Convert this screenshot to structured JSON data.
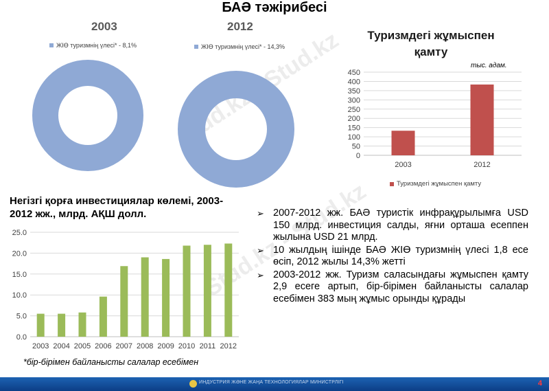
{
  "title": "БАӘ тәжірибесі",
  "donut_charts": [
    {
      "year": "2003",
      "legend": "ЖІӨ туризмнің үлесі* - 8,1%",
      "share_percent": 8.1,
      "color": "#8fa9d5"
    },
    {
      "year": "2012",
      "legend": "ЖІӨ туризмнің үлесі* - 14,3%",
      "share_percent": 14.3,
      "color": "#8fa9d5"
    }
  ],
  "employment_chart": {
    "title": "Туризмдегі жұмыспен қамту",
    "unit": "тыс. адам.",
    "legend": "Туризмдегі жұмыспен қамту",
    "color": "#c0504d"
  },
  "investment_chart": {
    "title": "Негізгі қорға инвестициялар көлемі, 2003-2012 жж., млрд. АҚШ долл.",
    "color": "#9bbb59"
  },
  "chart_data": [
    {
      "type": "bar",
      "title": "Туризмдегі жұмыспен қамту",
      "categories": [
        "2003",
        "2012"
      ],
      "series": [
        {
          "name": "Туризмдегі жұмыспен қамту",
          "values": [
            133,
            383
          ]
        }
      ],
      "ylim": [
        0,
        450
      ],
      "yticks": [
        "0",
        "50",
        "100",
        "150",
        "200",
        "250",
        "300",
        "350",
        "400",
        "450"
      ],
      "grid": true,
      "legend": "bottom"
    },
    {
      "type": "bar",
      "title": "Негізгі қорға инвестициялар көлемі, 2003-2012 жж., млрд. АҚШ долл.",
      "categories": [
        "2003",
        "2004",
        "2005",
        "2006",
        "2007",
        "2008",
        "2009",
        "2010",
        "2011",
        "2012"
      ],
      "values": [
        5.5,
        5.5,
        5.8,
        9.6,
        16.9,
        19.0,
        18.6,
        21.8,
        22.0,
        22.3
      ],
      "ylim": [
        0,
        25
      ],
      "yticks": [
        "0.0",
        "5.0",
        "10.0",
        "15.0",
        "20.0",
        "25.0"
      ],
      "grid": true
    }
  ],
  "bullets": [
    "2007-2012 жж. БАӘ туристік инфрақұрылымға USD 150 млрд. инвестиция салды, яғни орташа есеппен жылына USD 21 млрд.",
    "10 жылдың ішінде БАӘ ЖІӨ туризмнің үлесі 1,8 есе өсіп, 2012 жылы 14,3% жетті",
    "2003-2012 жж. Туризм саласындағы жұмыспен қамту 2,9 есеге артып, бір-бірімен байланысты салалар есебімен 383 мың жұмыс орынды құрады"
  ],
  "footnote": "*бір-бірімен байланысты салалар есебімен",
  "footer": {
    "org": "ИНДУСТРИЯ ЖӘНЕ ЖАҢА ТЕХНОЛОГИЯЛАР МИНИСТРЛІГІ",
    "page": "4"
  },
  "watermark": "Stud.kz - Stud.kz"
}
